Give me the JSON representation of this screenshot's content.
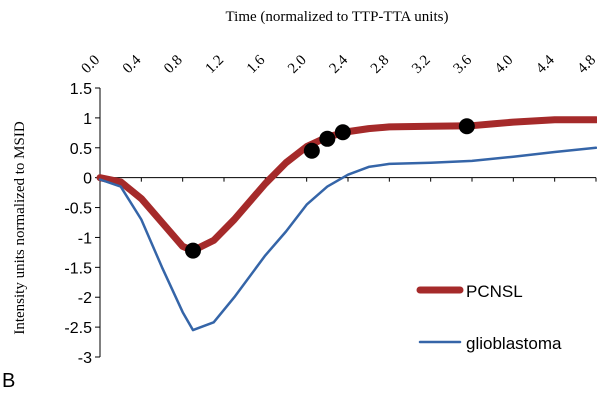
{
  "panel_label": "B",
  "chart_data": {
    "type": "line",
    "title": "",
    "xlabel": "Time (normalized to TTP-TTA units)",
    "ylabel": "Intensity units normalized to MSID",
    "x_axis_position": "top",
    "xlim": [
      0.0,
      4.8
    ],
    "ylim": [
      -3,
      1.5
    ],
    "xticks": [
      "0.0",
      "0.4",
      "0.8",
      "1.2",
      "1.6",
      "2.0",
      "2.4",
      "2.8",
      "3.2",
      "3.6",
      "4.0",
      "4.4",
      "4.8"
    ],
    "yticks": [
      "1.5",
      "1",
      "0.5",
      "0",
      "-0.5",
      "-1",
      "-1.5",
      "-2",
      "-2.5",
      "-3"
    ],
    "grid": false,
    "legend": "bottom-right",
    "series": [
      {
        "name": "PCNSL",
        "color": "#a52a2a",
        "line_width": "thick",
        "x": [
          0.0,
          0.2,
          0.4,
          0.6,
          0.8,
          0.9,
          1.1,
          1.3,
          1.6,
          1.8,
          2.0,
          2.2,
          2.4,
          2.6,
          2.8,
          3.2,
          3.6,
          3.8,
          4.0,
          4.4,
          4.8
        ],
        "y": [
          0.0,
          -0.07,
          -0.35,
          -0.75,
          -1.15,
          -1.22,
          -1.05,
          -0.7,
          -0.1,
          0.25,
          0.52,
          0.68,
          0.77,
          0.82,
          0.85,
          0.86,
          0.87,
          0.9,
          0.93,
          0.97,
          0.97
        ]
      },
      {
        "name": "glioblastoma",
        "color": "#3565a8",
        "line_width": "thin",
        "x": [
          0.0,
          0.2,
          0.4,
          0.6,
          0.8,
          0.9,
          1.1,
          1.3,
          1.6,
          1.8,
          2.0,
          2.2,
          2.4,
          2.6,
          2.8,
          3.2,
          3.6,
          4.0,
          4.4,
          4.8
        ],
        "y": [
          -0.03,
          -0.15,
          -0.7,
          -1.5,
          -2.25,
          -2.55,
          -2.42,
          -2.0,
          -1.3,
          -0.9,
          -0.45,
          -0.15,
          0.05,
          0.18,
          0.23,
          0.25,
          0.28,
          0.35,
          0.43,
          0.5
        ]
      }
    ],
    "markers": {
      "color": "#000000",
      "x": [
        0.9,
        2.05,
        2.2,
        2.35,
        3.55
      ],
      "y": [
        -1.22,
        0.45,
        0.65,
        0.76,
        0.86
      ]
    }
  }
}
